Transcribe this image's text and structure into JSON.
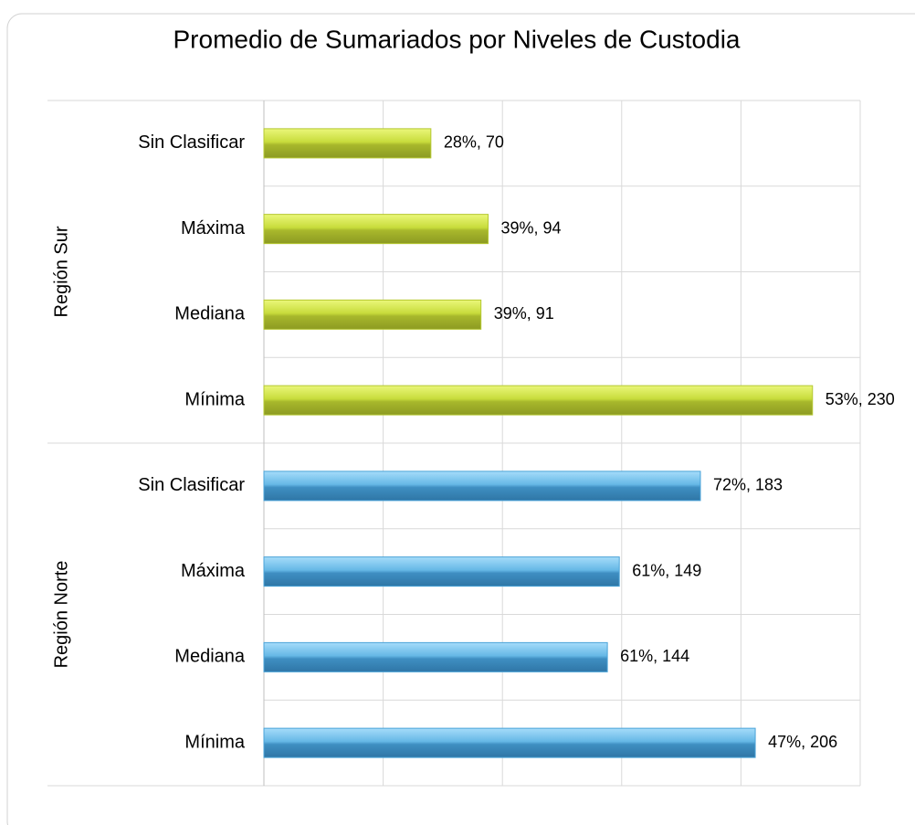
{
  "chart_data": {
    "type": "bar",
    "orientation": "horizontal",
    "title": "Promedio de Sumariados por Niveles de Custodia",
    "categories": [
      "Sin Clasificar",
      "Máxima",
      "Mediana",
      "Mínima"
    ],
    "series": [
      {
        "name": "Región Sur",
        "color": "#b5c832",
        "values": [
          70,
          94,
          91,
          230
        ],
        "value_labels": [
          "28%, 70",
          "39%, 94",
          "39%, 91",
          "53%, 230"
        ]
      },
      {
        "name": "Región Norte",
        "color": "#4aa3d8",
        "values": [
          183,
          149,
          144,
          206
        ],
        "value_labels": [
          "72%, 183",
          "61%, 149",
          "61%, 144",
          "47%, 206"
        ]
      }
    ],
    "xlim": [
      0,
      250
    ],
    "xticks": [
      0,
      50,
      100,
      150,
      200,
      250
    ],
    "grid": true
  }
}
